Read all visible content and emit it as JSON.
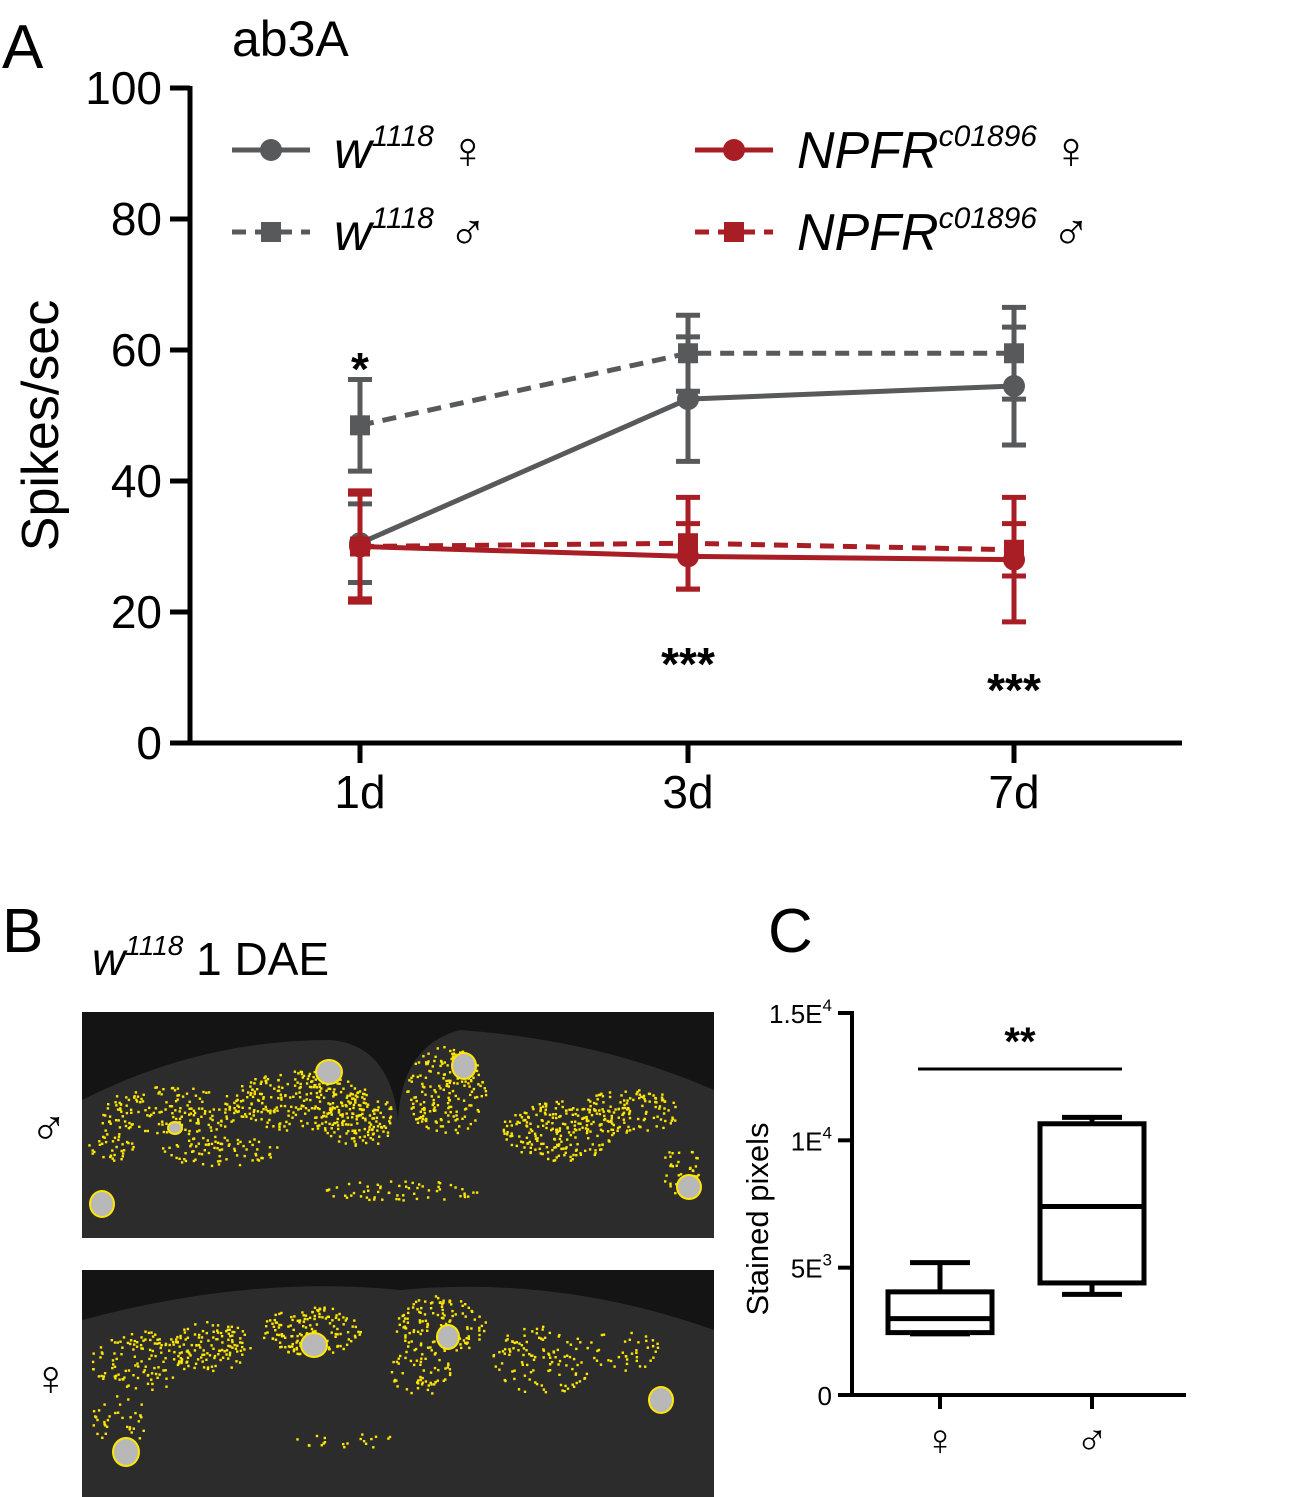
{
  "panels": {
    "a": {
      "letter": "A",
      "title": "ab3A"
    },
    "b": {
      "letter": "B",
      "caption_base": "w",
      "caption_sup": "1118",
      "caption_rest": " 1 DAE",
      "row_labels": [
        "♂",
        "♀"
      ]
    },
    "c": {
      "letter": "C"
    }
  },
  "colors": {
    "grey": "#58595b",
    "red": "#a81e24",
    "yellow": "#ffe600",
    "axis": "#000000"
  },
  "legend": [
    {
      "base": "w",
      "sup": "1118",
      "sex": "♀",
      "color": "grey",
      "dashed": false,
      "marker": "circle"
    },
    {
      "base": "w",
      "sup": "1118",
      "sex": "♂",
      "color": "grey",
      "dashed": true,
      "marker": "square"
    },
    {
      "base": "NPFR",
      "sup": "c01896",
      "sex": "♀",
      "color": "red",
      "dashed": false,
      "marker": "circle"
    },
    {
      "base": "NPFR",
      "sup": "c01896",
      "sex": "♂",
      "color": "red",
      "dashed": true,
      "marker": "square"
    }
  ],
  "chart_data": [
    {
      "type": "line",
      "title": "ab3A",
      "xlabel": "",
      "ylabel": "Spikes/sec",
      "categories": [
        "1d",
        "3d",
        "7d"
      ],
      "ylim": [
        0,
        100
      ],
      "yticks": [
        "0",
        "20",
        "40",
        "60",
        "80",
        "100"
      ],
      "series": [
        {
          "name": "w1118 ♀",
          "color": "grey",
          "dashed": false,
          "marker": "circle",
          "values": [
            30.5,
            52.5,
            54.5
          ],
          "err": [
            6.0,
            9.5,
            9.0
          ]
        },
        {
          "name": "w1118 ♂",
          "color": "grey",
          "dashed": true,
          "marker": "square",
          "values": [
            48.5,
            59.5,
            59.5
          ],
          "err": [
            7.0,
            5.8,
            7.0
          ]
        },
        {
          "name": "NPFRc01896 ♀",
          "color": "red",
          "dashed": false,
          "marker": "circle",
          "values": [
            30.0,
            28.5,
            28.0
          ],
          "err": [
            8.0,
            5.0,
            9.5
          ]
        },
        {
          "name": "NPFRc01896 ♂",
          "color": "red",
          "dashed": true,
          "marker": "square",
          "values": [
            30.0,
            30.5,
            29.5
          ],
          "err": [
            8.5,
            7.0,
            4.0
          ]
        }
      ],
      "annotations": [
        {
          "category": "1d",
          "text": "*",
          "value": 58
        },
        {
          "category": "3d",
          "text": "***",
          "value": 13
        },
        {
          "category": "7d",
          "text": "***",
          "value": 9
        }
      ]
    },
    {
      "type": "box",
      "xlabel": "",
      "ylabel": "Stained pixels",
      "categories": [
        "♀",
        "♂"
      ],
      "ylim": [
        0,
        15000
      ],
      "yticks": [
        {
          "value": 0,
          "base": "0",
          "exp": ""
        },
        {
          "value": 5000,
          "base": "5E",
          "exp": "3"
        },
        {
          "value": 10000,
          "base": "1E",
          "exp": "4"
        },
        {
          "value": 15000,
          "base": "1.5E",
          "exp": "4"
        }
      ],
      "boxes": [
        {
          "category": "♀",
          "min": 2400,
          "q1": 2450,
          "median": 3000,
          "q3": 4050,
          "max": 5200
        },
        {
          "category": "♂",
          "min": 3950,
          "q1": 4400,
          "median": 7400,
          "q3": 10650,
          "max": 10900
        }
      ],
      "significance": {
        "text": "**",
        "from": "♀",
        "to": "♂",
        "value": 12800
      }
    }
  ]
}
